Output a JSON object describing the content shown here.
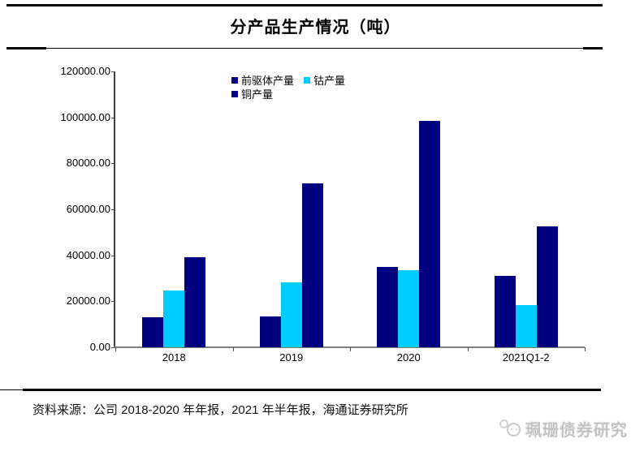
{
  "header": {
    "title": "分产品生产情况（吨）"
  },
  "chart_data": {
    "type": "bar",
    "title": "分产品生产情况（吨）",
    "categories": [
      "2018",
      "2019",
      "2020",
      "2021Q1-2"
    ],
    "series": [
      {
        "id": "precursor",
        "name": "前驱体产量",
        "color": "#000080",
        "values": [
          13000,
          13300,
          34800,
          31000
        ]
      },
      {
        "id": "cobalt",
        "name": "钴产量",
        "color": "#00CCFF",
        "values": [
          24600,
          28300,
          33500,
          18300
        ]
      },
      {
        "id": "copper",
        "name": "铜产量",
        "color": "#000080",
        "values": [
          39000,
          71200,
          98500,
          52700
        ]
      }
    ],
    "ylim": [
      0,
      120000
    ],
    "ytick_step": 20000,
    "ytick_labels": [
      "0.00",
      "20000.00",
      "40000.00",
      "60000.00",
      "80000.00",
      "100000.00",
      "120000.00"
    ],
    "grid": false,
    "legend_position": "top-center"
  },
  "footer": {
    "source": "资料来源：公司 2018-2020 年年报，2021 年半年报，海通证券研究所",
    "watermark": "珮珊债券研究"
  },
  "colors": {
    "navy": "#000080",
    "cyan": "#00CCFF",
    "axis": "#4d4d4d"
  }
}
